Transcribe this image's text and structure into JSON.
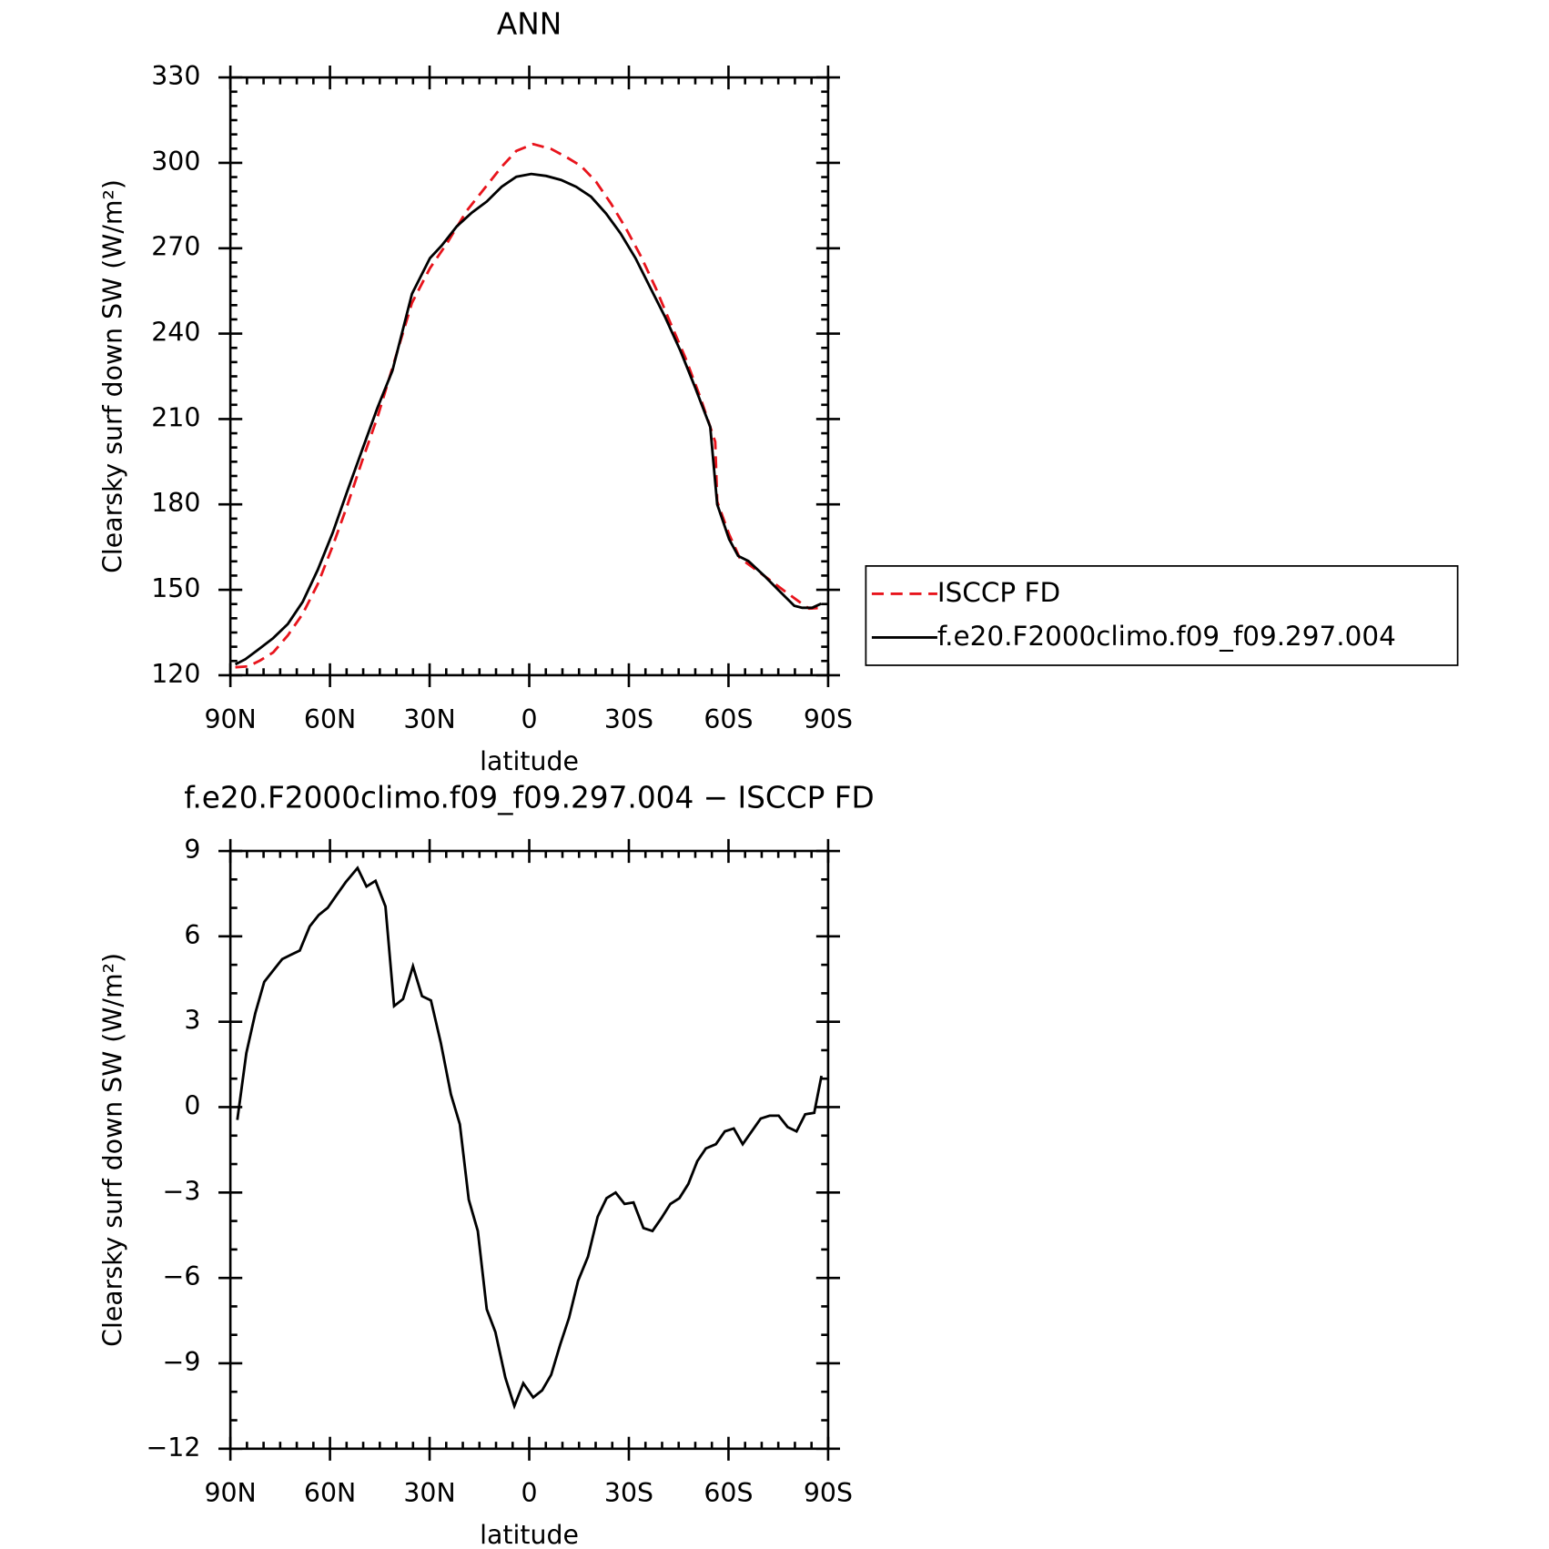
{
  "chart_data": [
    {
      "type": "line",
      "title": "ANN",
      "xlabel": "latitude",
      "ylabel": "Clearsky surf down SW (W/m²)",
      "xlim": [
        90,
        -90
      ],
      "xticks": [
        {
          "value": 90,
          "label": "90N"
        },
        {
          "value": 60,
          "label": "60N"
        },
        {
          "value": 30,
          "label": "30N"
        },
        0,
        {
          "value": -30,
          "label": "30S"
        },
        {
          "value": -60,
          "label": "60S"
        },
        {
          "value": -90,
          "label": "90S"
        }
      ],
      "ylim": [
        120,
        330
      ],
      "yticks": [
        120,
        150,
        180,
        210,
        240,
        270,
        300,
        330
      ],
      "legend": "right",
      "series": [
        {
          "name": "ISCCP FD",
          "color": "#e8141c",
          "dash": true,
          "x": [
            88.5,
            84.6,
            81,
            77.1,
            72.7,
            68.2,
            63.7,
            59.2,
            54.7,
            50.2,
            45.7,
            41.2,
            35.3,
            29.9,
            24.8,
            18.8,
            12.8,
            8.3,
            3.9,
            -1.2,
            -6.6,
            -11.1,
            -15.6,
            -20.1,
            -24.6,
            -29.1,
            -33.6,
            -38.1,
            -42.5,
            -47,
            -51.5,
            -56,
            -56.6,
            -60.2,
            -63.4,
            -70.8,
            -76.8,
            -81.3,
            -84.3,
            -87.9
          ],
          "values": [
            122.8,
            123.1,
            125.2,
            128,
            134,
            141.6,
            152,
            165.3,
            180,
            195.7,
            210.7,
            228,
            250.8,
            263,
            271.7,
            283.2,
            292,
            298.6,
            304.2,
            306.6,
            304.9,
            302.1,
            298.9,
            293.4,
            285.7,
            277,
            267.2,
            256,
            243.8,
            231.6,
            217.7,
            202,
            181,
            169.5,
            161.2,
            154.9,
            149.6,
            145.8,
            143.4,
            143.7
          ]
        },
        {
          "name": "f.e20.F2000climo.f09_f09.297.004",
          "color": "#000000",
          "dash": false,
          "x": [
            88.5,
            85.5,
            81.6,
            77.1,
            72.7,
            68.2,
            63.7,
            59.2,
            54.7,
            50.2,
            45.7,
            41.2,
            39.8,
            35.3,
            29.9,
            26.3,
            21.8,
            17.3,
            12.8,
            8.3,
            3.9,
            -0.6,
            -5.1,
            -9.6,
            -14.1,
            -18.6,
            -23.1,
            -27.5,
            -32,
            -36.5,
            -41,
            -45.5,
            -50,
            -54.5,
            -56.6,
            -60.2,
            -62.9,
            -66,
            -70.8,
            -75.3,
            -79.8,
            -82.2,
            -85.2,
            -87.9
          ],
          "values": [
            123.8,
            125.6,
            129,
            133,
            138,
            145.8,
            157,
            170,
            185,
            199.5,
            214,
            227,
            233.4,
            254,
            266.5,
            271,
            277.7,
            282.5,
            286.4,
            291.6,
            295.1,
            296.1,
            295.4,
            294,
            291.6,
            288.1,
            282.2,
            275.2,
            266.5,
            256,
            245.6,
            234,
            221,
            207.2,
            180,
            167.8,
            161.9,
            160.1,
            154.9,
            149.6,
            144.4,
            143.7,
            143.7,
            145.1
          ]
        }
      ]
    },
    {
      "type": "line",
      "title": "f.e20.F2000climo.f09_f09.297.004 − ISCCP FD",
      "xlabel": "latitude",
      "ylabel": "Clearsky surf down SW (W/m²)",
      "xlim": [
        90,
        -90
      ],
      "xticks": [
        {
          "value": 90,
          "label": "90N"
        },
        {
          "value": 60,
          "label": "60N"
        },
        {
          "value": 30,
          "label": "30N"
        },
        0,
        {
          "value": -30,
          "label": "30S"
        },
        {
          "value": -60,
          "label": "60S"
        },
        {
          "value": -90,
          "label": "90S"
        }
      ],
      "ylim": [
        -12,
        9
      ],
      "yticks": [
        {
          "value": -12,
          "label": "−12"
        },
        {
          "value": -9,
          "label": "−9"
        },
        {
          "value": -6,
          "label": "−6"
        },
        {
          "value": -3,
          "label": "−3"
        },
        0,
        3,
        6,
        9
      ],
      "series": [
        {
          "color": "#000000",
          "dash": false,
          "x": [
            87.9,
            85.2,
            82.5,
            79.8,
            77.1,
            74.4,
            71.8,
            69.1,
            66.1,
            63.4,
            60.7,
            58,
            55.3,
            51.7,
            49,
            46.3,
            43.3,
            40.7,
            38,
            35,
            32.3,
            29.6,
            26.6,
            23.6,
            20.9,
            18.2,
            15.5,
            12.8,
            10.2,
            7.2,
            4.5,
            1.8,
            -1.2,
            -3.9,
            -6.6,
            -9.3,
            -12,
            -14.7,
            -17.7,
            -20.6,
            -23.3,
            -26,
            -28.7,
            -31.4,
            -34.4,
            -37.1,
            -39.8,
            -42.5,
            -45.2,
            -47.9,
            -50.6,
            -53.2,
            -56.2,
            -58.9,
            -61.6,
            -64.3,
            -67,
            -69.7,
            -72.4,
            -75.1,
            -77.8,
            -80.5,
            -83.1,
            -85.8,
            -88
          ],
          "values": [
            -0.45,
            1.9,
            3.3,
            4.4,
            4.8,
            5.2,
            5.35,
            5.5,
            6.35,
            6.75,
            7,
            7.45,
            7.9,
            8.4,
            7.75,
            7.95,
            7.05,
            3.55,
            3.8,
            4.95,
            3.9,
            3.75,
            2.25,
            0.45,
            -0.6,
            -3.25,
            -4.35,
            -7.1,
            -7.9,
            -9.5,
            -10.5,
            -9.7,
            -10.2,
            -9.95,
            -9.4,
            -8.35,
            -7.4,
            -6.1,
            -5.25,
            -3.85,
            -3.2,
            -3,
            -3.4,
            -3.35,
            -4.25,
            -4.35,
            -3.9,
            -3.4,
            -3.2,
            -2.7,
            -1.9,
            -1.45,
            -1.3,
            -0.85,
            -0.75,
            -1.3,
            -0.85,
            -0.4,
            -0.3,
            -0.3,
            -0.7,
            -0.85,
            -0.25,
            -0.2,
            1.1
          ]
        }
      ]
    }
  ]
}
